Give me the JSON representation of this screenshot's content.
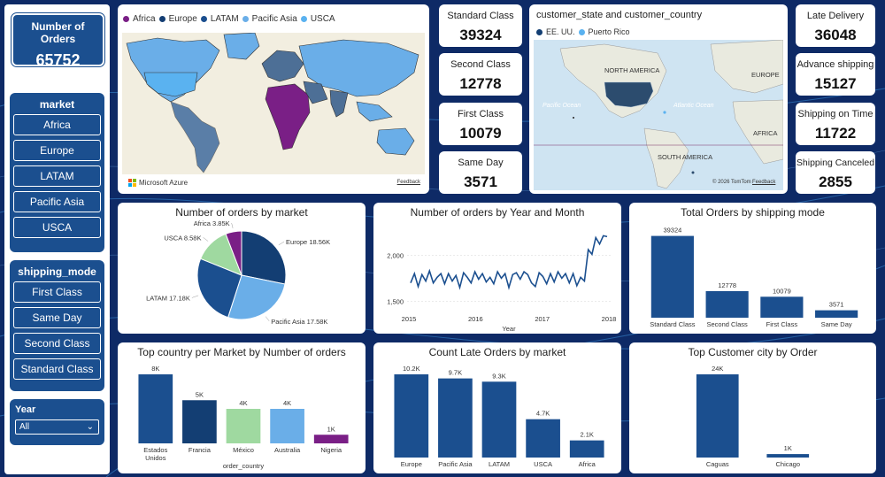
{
  "kpis": {
    "number_of_orders": {
      "label": "Number of Orders",
      "value": "65752"
    },
    "standard_class": {
      "label": "Standard Class",
      "value": "39324"
    },
    "second_class": {
      "label": "Second Class",
      "value": "12778"
    },
    "first_class": {
      "label": "First Class",
      "value": "10079"
    },
    "same_day": {
      "label": "Same Day",
      "value": "3571"
    },
    "late_delivery": {
      "label": "Late Delivery",
      "value": "36048"
    },
    "advance_shipping": {
      "label": "Advance shipping",
      "value": "15127"
    },
    "shipping_on_time": {
      "label": "Shipping on Time",
      "value": "11722"
    },
    "shipping_canceled": {
      "label": "Shipping Canceled",
      "value": "2855"
    }
  },
  "slicers": {
    "market": {
      "title": "market",
      "options": [
        "Africa",
        "Europe",
        "LATAM",
        "Pacific Asia",
        "USCA"
      ]
    },
    "shipping_mode": {
      "title": "shipping_mode",
      "options": [
        "First Class",
        "Same Day",
        "Second Class",
        "Standard Class"
      ]
    },
    "year": {
      "title": "Year",
      "selected": "All"
    }
  },
  "world_map": {
    "legend": [
      "Africa",
      "Europe",
      "LATAM",
      "Pacific Asia",
      "USCA"
    ],
    "attribution": "Microsoft Azure",
    "feedback": "Feedback"
  },
  "customer_map": {
    "title": "customer_state and customer_country",
    "legend": [
      "EE. UU.",
      "Puerto Rico"
    ],
    "labels": {
      "north_america": "NORTH AMERICA",
      "europe": "EUROPE",
      "pacific_ocean": "Pacific Ocean",
      "atlantic_ocean": "Atlantic Ocean",
      "africa": "AFRICA",
      "south_america": "SOUTH AMERICA"
    },
    "attribution": "© 2026 TomTom",
    "feedback": "Feedback"
  },
  "colors": {
    "navy": "#1b4f8f",
    "dark_navy": "#133e73",
    "light_blue": "#6aaee8",
    "green": "#9fd9a0",
    "purple": "#7a1f86",
    "sky": "#5ab2f0",
    "ocean": "#cfe4f2"
  },
  "chart_data": [
    {
      "type": "pie",
      "title": "Number of orders by market",
      "slices": [
        {
          "name": "Europe",
          "value": 18.56,
          "label": "Europe 18.56K",
          "color": "#133e73"
        },
        {
          "name": "Pacific Asia",
          "value": 17.58,
          "label": "Pacific Asia 17.58K",
          "color": "#6aaee8"
        },
        {
          "name": "LATAM",
          "value": 17.18,
          "label": "LATAM 17.18K",
          "color": "#1b4f8f"
        },
        {
          "name": "USCA",
          "value": 8.58,
          "label": "USCA 8.58K",
          "color": "#9fd9a0"
        },
        {
          "name": "Africa",
          "value": 3.85,
          "label": "Africa 3.85K",
          "color": "#7a1f86"
        }
      ]
    },
    {
      "type": "line",
      "title": "Number of orders by Year and Month",
      "xlabel": "Year",
      "x_ticks": [
        "2015",
        "2016",
        "2017",
        "2018"
      ],
      "y_ticks": [
        "2,000",
        "1,500"
      ],
      "y_tick_values": [
        2000,
        1500
      ],
      "ylim": [
        1400,
        2300
      ],
      "xlim": [
        2015,
        2018
      ],
      "values": [
        1700,
        1800,
        1660,
        1790,
        1720,
        1830,
        1700,
        1760,
        1800,
        1690,
        1800,
        1720,
        1780,
        1650,
        1810,
        1760,
        1700,
        1820,
        1740,
        1800,
        1710,
        1760,
        1690,
        1820,
        1750,
        1800,
        1650,
        1790,
        1810,
        1740,
        1820,
        1790,
        1700,
        1660,
        1810,
        1770,
        1690,
        1800,
        1710,
        1820,
        1750,
        1800,
        1700,
        1800,
        1670,
        1760,
        1720,
        2060,
        2010,
        2190,
        2120,
        2210,
        2200
      ]
    },
    {
      "type": "bar",
      "title": "Total Orders by shipping mode",
      "categories": [
        "Standard Class",
        "Second Class",
        "First Class",
        "Same Day"
      ],
      "values": [
        39324,
        12778,
        10079,
        3571
      ],
      "data_labels": [
        "39324",
        "12778",
        "10079",
        "3571"
      ],
      "ylim": [
        0,
        40000
      ]
    },
    {
      "type": "bar",
      "title": "Top country per Market by Number of orders",
      "xlabel": "order_country",
      "categories": [
        "Estados Unidos",
        "Francia",
        "México",
        "Australia",
        "Nigeria"
      ],
      "values": [
        8,
        5,
        4,
        4,
        1
      ],
      "data_labels": [
        "8K",
        "5K",
        "4K",
        "4K",
        "1K"
      ],
      "colors": [
        "#1b4f8f",
        "#133e73",
        "#9fd9a0",
        "#6aaee8",
        "#7a1f86"
      ],
      "ylim": [
        0,
        8
      ]
    },
    {
      "type": "bar",
      "title": "Count Late Orders by market",
      "categories": [
        "Europe",
        "Pacific Asia",
        "LATAM",
        "USCA",
        "Africa"
      ],
      "values": [
        10.2,
        9.7,
        9.3,
        4.7,
        2.1
      ],
      "data_labels": [
        "10.2K",
        "9.7K",
        "9.3K",
        "4.7K",
        "2.1K"
      ],
      "ylim": [
        0,
        10.2
      ]
    },
    {
      "type": "bar",
      "title": "Top Customer city by Order",
      "categories": [
        "Caguas",
        "Chicago"
      ],
      "values": [
        24,
        1
      ],
      "data_labels": [
        "24K",
        "1K"
      ],
      "ylim": [
        0,
        24
      ]
    }
  ]
}
